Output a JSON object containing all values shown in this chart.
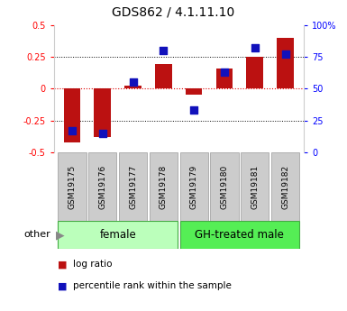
{
  "title": "GDS862 / 4.1.11.10",
  "samples": [
    "GSM19175",
    "GSM19176",
    "GSM19177",
    "GSM19178",
    "GSM19179",
    "GSM19180",
    "GSM19181",
    "GSM19182"
  ],
  "log_ratio": [
    -0.42,
    -0.38,
    0.02,
    0.19,
    -0.05,
    0.16,
    0.25,
    0.4
  ],
  "percentile_rank": [
    17,
    15,
    55,
    80,
    33,
    63,
    82,
    77
  ],
  "groups": [
    {
      "label": "female",
      "indices": [
        0,
        1,
        2,
        3
      ],
      "color": "#bbffbb"
    },
    {
      "label": "GH-treated male",
      "indices": [
        4,
        5,
        6,
        7
      ],
      "color": "#55ee55"
    }
  ],
  "ylim_left": [
    -0.5,
    0.5
  ],
  "ylim_right": [
    0,
    100
  ],
  "yticks_left": [
    -0.5,
    -0.25,
    0.0,
    0.25,
    0.5
  ],
  "yticks_right": [
    0,
    25,
    50,
    75,
    100
  ],
  "ytick_labels_left": [
    "-0.5",
    "-0.25",
    "0",
    "0.25",
    "0.5"
  ],
  "ytick_labels_right": [
    "0",
    "25",
    "50",
    "75",
    "100%"
  ],
  "bar_color": "#bb1111",
  "dot_color": "#1111bb",
  "zero_line_color": "#dd0000",
  "title_fontsize": 10,
  "tick_fontsize": 7,
  "label_fontsize": 6.5,
  "legend_fontsize": 7.5,
  "group_label_fontsize": 8.5,
  "bar_width": 0.55,
  "dot_size": 40,
  "sample_box_color": "#cccccc",
  "sample_box_edge": "#999999"
}
